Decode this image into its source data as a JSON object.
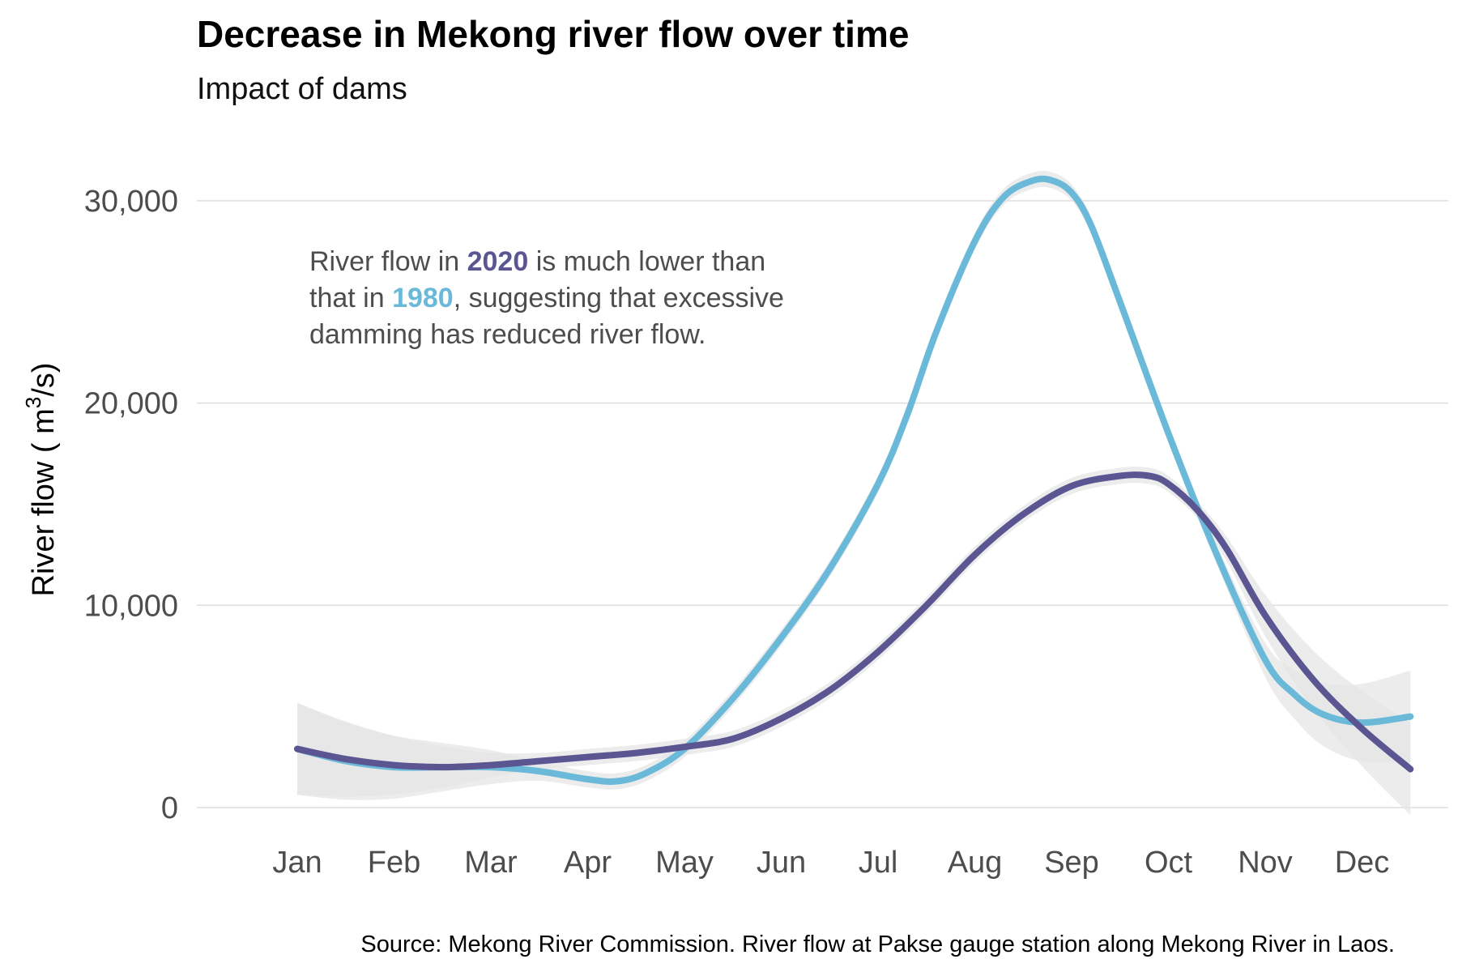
{
  "chart_data": {
    "type": "line",
    "title": "Decrease in Mekong river flow over time",
    "subtitle": "Impact of dams",
    "ylabel": "River flow ( m3/s)",
    "ylabel_parts": {
      "prefix": "River flow ( m",
      "sup": "3",
      "suffix": "/s)"
    },
    "xlabel": "",
    "x_ticks": [
      "Jan",
      "Feb",
      "Mar",
      "Apr",
      "May",
      "Jun",
      "Jul",
      "Aug",
      "Sep",
      "Oct",
      "Nov",
      "Dec"
    ],
    "y_ticks": [
      0,
      10000,
      20000,
      30000
    ],
    "y_tick_labels": [
      "0",
      "10,000",
      "20,000",
      "30,000"
    ],
    "ylim": [
      0,
      31000
    ],
    "grid": "horizontal",
    "legend": "none",
    "series": [
      {
        "name": "1980",
        "color": "#6BB9D9",
        "x": [
          1,
          1.5,
          2,
          2.5,
          3,
          3.5,
          4,
          4.3,
          4.6,
          5,
          5.5,
          6,
          6.5,
          7,
          7.3,
          7.6,
          8,
          8.3,
          8.6,
          8.8,
          9,
          9.2,
          9.5,
          10,
          10.5,
          11,
          11.3,
          11.6,
          12,
          12.5
        ],
        "y": [
          2900,
          2300,
          2000,
          2000,
          2000,
          1800,
          1400,
          1300,
          1700,
          2900,
          5400,
          8400,
          11800,
          16000,
          19400,
          23500,
          28000,
          30200,
          31000,
          31000,
          30400,
          28800,
          25000,
          18500,
          12500,
          7300,
          5600,
          4600,
          4200,
          4500
        ]
      },
      {
        "name": "2020",
        "color": "#5B5592",
        "x": [
          1,
          1.5,
          2,
          2.5,
          3,
          3.5,
          4,
          4.5,
          5,
          5.5,
          6,
          6.5,
          7,
          7.5,
          8,
          8.5,
          9,
          9.5,
          9.8,
          10,
          10.3,
          10.6,
          11,
          11.5,
          12,
          12.5
        ],
        "y": [
          2900,
          2400,
          2100,
          2000,
          2100,
          2300,
          2500,
          2700,
          3000,
          3400,
          4400,
          5800,
          7700,
          10000,
          12500,
          14500,
          15900,
          16400,
          16400,
          16000,
          14700,
          12800,
          9500,
          6300,
          3900,
          1900
        ]
      }
    ],
    "annotation": {
      "line1_a": "River flow in ",
      "line1_b": "2020",
      "line1_c": " is much lower than",
      "line2_a": "that in ",
      "line2_b": "1980",
      "line2_c": ", suggesting that excessive",
      "line3": "damming has reduced river flow."
    },
    "caption": "Source: Mekong River Commission. River flow at Pakse gauge station along Mekong River in Laos.",
    "ribbon_color": "#e6e6e6",
    "grid_color": "#dedede"
  }
}
